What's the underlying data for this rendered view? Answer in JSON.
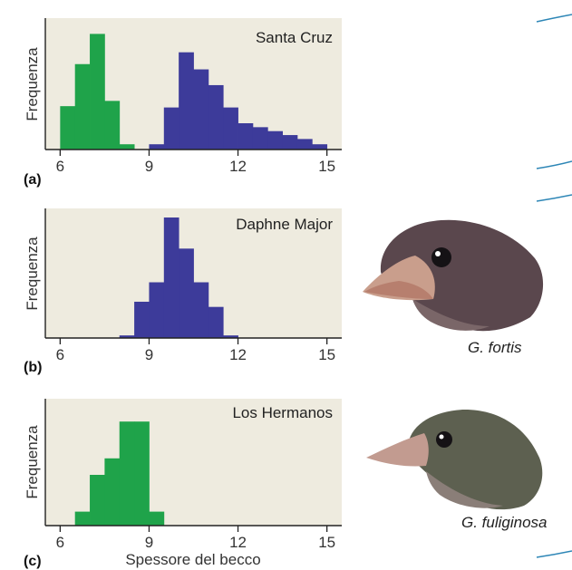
{
  "colors": {
    "panel_bg": "#eeebdf",
    "green": "#1fa34a",
    "blue": "#3d3b9a",
    "axis": "#222222",
    "accent_line": "#2d86b6"
  },
  "x_axis_label": "Spessore del becco",
  "chart_data": [
    {
      "type": "bar",
      "panel_label": "(a)",
      "title": "Santa Cruz",
      "ylabel": "Frequenza",
      "xlabel": "",
      "xlim": [
        5.5,
        15.5
      ],
      "ylim": [
        0,
        10
      ],
      "x_ticks": [
        6,
        9,
        12,
        15
      ],
      "series": [
        {
          "name": "G. fuliginosa",
          "color": "green",
          "bins": [
            {
              "start": 6.0,
              "end": 6.5,
              "value": 3.3
            },
            {
              "start": 6.5,
              "end": 7.0,
              "value": 6.5
            },
            {
              "start": 7.0,
              "end": 7.5,
              "value": 8.8
            },
            {
              "start": 7.5,
              "end": 8.0,
              "value": 3.7
            },
            {
              "start": 8.0,
              "end": 8.5,
              "value": 0.4
            }
          ]
        },
        {
          "name": "G. fortis",
          "color": "blue",
          "bins": [
            {
              "start": 9.0,
              "end": 9.5,
              "value": 0.4
            },
            {
              "start": 9.5,
              "end": 10.0,
              "value": 3.2
            },
            {
              "start": 10.0,
              "end": 10.5,
              "value": 7.4
            },
            {
              "start": 10.5,
              "end": 11.0,
              "value": 6.1
            },
            {
              "start": 11.0,
              "end": 11.5,
              "value": 4.9
            },
            {
              "start": 11.5,
              "end": 12.0,
              "value": 3.2
            },
            {
              "start": 12.0,
              "end": 12.5,
              "value": 2.0
            },
            {
              "start": 12.5,
              "end": 13.0,
              "value": 1.7
            },
            {
              "start": 13.0,
              "end": 13.5,
              "value": 1.4
            },
            {
              "start": 13.5,
              "end": 14.0,
              "value": 1.1
            },
            {
              "start": 14.0,
              "end": 14.5,
              "value": 0.8
            },
            {
              "start": 14.5,
              "end": 15.0,
              "value": 0.4
            }
          ]
        }
      ]
    },
    {
      "type": "bar",
      "panel_label": "(b)",
      "title": "Daphne Major",
      "ylabel": "Frequenza",
      "xlabel": "",
      "xlim": [
        5.5,
        15.5
      ],
      "ylim": [
        0,
        10
      ],
      "x_ticks": [
        6,
        9,
        12,
        15
      ],
      "series": [
        {
          "name": "G. fortis",
          "color": "blue",
          "bins": [
            {
              "start": 8.0,
              "end": 8.5,
              "value": 0.2
            },
            {
              "start": 8.5,
              "end": 9.0,
              "value": 2.8
            },
            {
              "start": 9.0,
              "end": 9.5,
              "value": 4.3
            },
            {
              "start": 9.5,
              "end": 10.0,
              "value": 9.3
            },
            {
              "start": 10.0,
              "end": 10.5,
              "value": 6.9
            },
            {
              "start": 10.5,
              "end": 11.0,
              "value": 4.3
            },
            {
              "start": 11.0,
              "end": 11.5,
              "value": 2.4
            },
            {
              "start": 11.5,
              "end": 12.0,
              "value": 0.2
            }
          ]
        }
      ]
    },
    {
      "type": "bar",
      "panel_label": "(c)",
      "title": "Los Hermanos",
      "ylabel": "Frequenza",
      "xlabel": "Spessore del becco",
      "xlim": [
        5.5,
        15.5
      ],
      "ylim": [
        0,
        10
      ],
      "x_ticks": [
        6,
        9,
        12,
        15
      ],
      "series": [
        {
          "name": "G. fuliginosa",
          "color": "green",
          "bins": [
            {
              "start": 6.5,
              "end": 7.0,
              "value": 1.1
            },
            {
              "start": 7.0,
              "end": 7.5,
              "value": 4.0
            },
            {
              "start": 7.5,
              "end": 8.0,
              "value": 5.3
            },
            {
              "start": 8.0,
              "end": 8.5,
              "value": 8.2
            },
            {
              "start": 8.5,
              "end": 9.0,
              "value": 8.2
            },
            {
              "start": 9.0,
              "end": 9.5,
              "value": 1.1
            }
          ]
        }
      ]
    }
  ],
  "bird_illustrations": [
    {
      "species_label": "G. fortis"
    },
    {
      "species_label": "G. fuliginosa"
    }
  ]
}
